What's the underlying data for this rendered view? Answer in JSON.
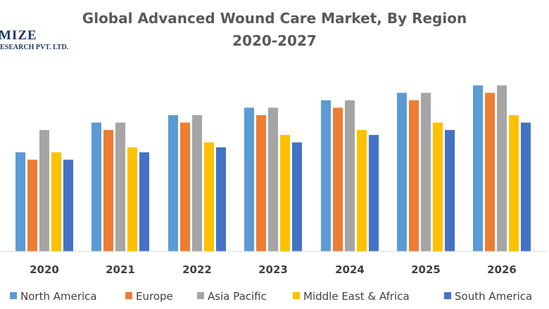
{
  "logo": {
    "line1": "MIZE",
    "line2": "ESEARCH PVT. LTD."
  },
  "chart_data": {
    "type": "bar",
    "title": [
      "Global Advanced Wound Care Market, By Region",
      "2020-2027"
    ],
    "categories": [
      "2020",
      "2021",
      "2022",
      "2023",
      "2024",
      "2025",
      "2026"
    ],
    "series": [
      {
        "name": "North America",
        "color": "#5b9bd5",
        "values": [
          40,
          52,
          55,
          58,
          61,
          64,
          67
        ]
      },
      {
        "name": "Europe",
        "color": "#ed7d31",
        "values": [
          37,
          49,
          52,
          55,
          58,
          61,
          64
        ]
      },
      {
        "name": "Asia Pacific",
        "color": "#a5a5a5",
        "values": [
          49,
          52,
          55,
          58,
          61,
          64,
          67
        ]
      },
      {
        "name": "Middle East & Africa",
        "color": "#ffc000",
        "values": [
          40,
          42,
          44,
          47,
          49,
          52,
          55
        ]
      },
      {
        "name": "South America",
        "color": "#4472c4",
        "values": [
          37,
          40,
          42,
          44,
          47,
          49,
          52
        ]
      }
    ],
    "ylim": [
      0,
      70
    ],
    "grid": false,
    "legend_position": "bottom"
  }
}
